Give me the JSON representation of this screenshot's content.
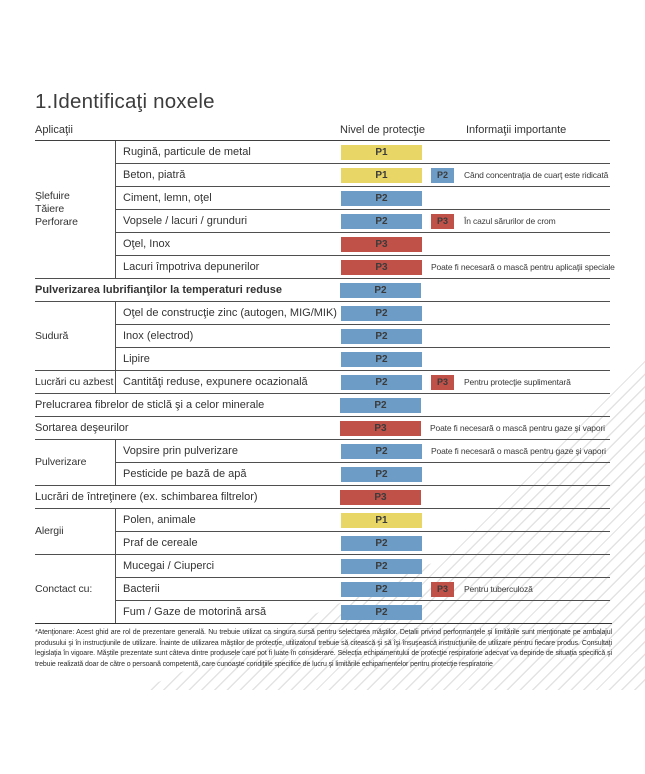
{
  "page": {
    "title": "1.Identificaţi noxele",
    "columns": {
      "applications": "Aplicaţii",
      "protection": "Nivel de protecţie",
      "info": "Informaţii importante"
    }
  },
  "colors": {
    "p1": "#e8d766",
    "p2": "#6d9cc6",
    "p3": "#c05149",
    "line": "#4f4f4f",
    "hatch": "#e3e3e3"
  },
  "sections": [
    {
      "group": "Şlefuire\nTăiere\nPerforare",
      "rows": [
        {
          "label": "Rugină, particule de metal",
          "level": "P1"
        },
        {
          "label": "Beton, piatră",
          "level": "P1",
          "extra": "P2",
          "note": "Când concentraţia de cuarţ este ridicată"
        },
        {
          "label": "Ciment, lemn, oţel",
          "level": "P2"
        },
        {
          "label": "Vopsele / lacuri / grunduri",
          "level": "P2",
          "extra": "P3",
          "note": "În cazul sărurilor de crom"
        },
        {
          "label": "Oţel, Inox",
          "level": "P3"
        },
        {
          "label": "Lacuri împotriva depunerilor",
          "level": "P3",
          "note": "Poate fi necesară o mască pentru aplicaţii speciale"
        }
      ]
    },
    {
      "full": true,
      "bold": true,
      "rows": [
        {
          "label": "Pulverizarea lubrifianţilor la temperaturi reduse",
          "level": "P2"
        }
      ]
    },
    {
      "group": "Sudură",
      "rows": [
        {
          "label": "Oţel de construcţie zinc (autogen, MIG/MIK)",
          "level": "P2"
        },
        {
          "label": "Inox (electrod)",
          "level": "P2"
        },
        {
          "label": "Lipire",
          "level": "P2"
        }
      ]
    },
    {
      "group": "Lucrări cu azbest",
      "rows": [
        {
          "label": "Cantităţi reduse, expunere ocazională",
          "level": "P2",
          "extra": "P3",
          "note": "Pentru protecţie suplimentară"
        }
      ]
    },
    {
      "full": true,
      "rows": [
        {
          "label": "Prelucrarea fibrelor de sticlă şi a celor minerale",
          "level": "P2"
        }
      ]
    },
    {
      "full": true,
      "rows": [
        {
          "label": "Sortarea deşeurilor",
          "level": "P3",
          "note": "Poate fi necesară o mască pentru gaze şi vapori"
        }
      ]
    },
    {
      "group": "Pulverizare",
      "rows": [
        {
          "label": "Vopsire prin pulverizare",
          "level": "P2",
          "note": "Poate fi necesară o mască pentru gaze şi vapori"
        },
        {
          "label": "Pesticide pe bază de apă",
          "level": "P2"
        }
      ]
    },
    {
      "full": true,
      "rows": [
        {
          "label": "Lucrări de întreţinere (ex. schimbarea filtrelor)",
          "level": "P3"
        }
      ]
    },
    {
      "group": "Alergii",
      "rows": [
        {
          "label": "Polen, animale",
          "level": "P1"
        },
        {
          "label": "Praf de cereale",
          "level": "P2"
        }
      ]
    },
    {
      "group": "Conctact cu:",
      "rows": [
        {
          "label": "Mucegai / Ciuperci",
          "level": "P2"
        },
        {
          "label": "Bacterii",
          "level": "P2",
          "extra": "P3",
          "note": "Pentru tuberculoză"
        },
        {
          "label": "Fum / Gaze de motorină arsă",
          "level": "P2"
        }
      ]
    }
  ],
  "footnote": "*Atenţionare: Acest ghid are rol de prezentare generală. Nu trebuie utilizat ca singura sursă pentru selectarea măştilor. Detalii privind performanţele şi limitările sunt menţionate pe ambalajul produsului şi în instrucţiunile de utilizare. Înainte de utilizarea măştilor de protecţie, utilizatorul trebuie să citească şi să îşi însuşească instrucţiunile de utilizare pentru fiecare produs. Consultaţi legislaţia în vigoare. Măştile prezentate sunt câteva dintre produsele care pot fi luate în considerare. Selecţia echipamentului de protecţie respiratorie adecvat va depinde de situaţia specifică şi trebuie realizată doar de către o persoană competentă, care cunoaşte condiţiile specifice de lucru şi limitările echipamentelor pentru protecţie respiratorie"
}
